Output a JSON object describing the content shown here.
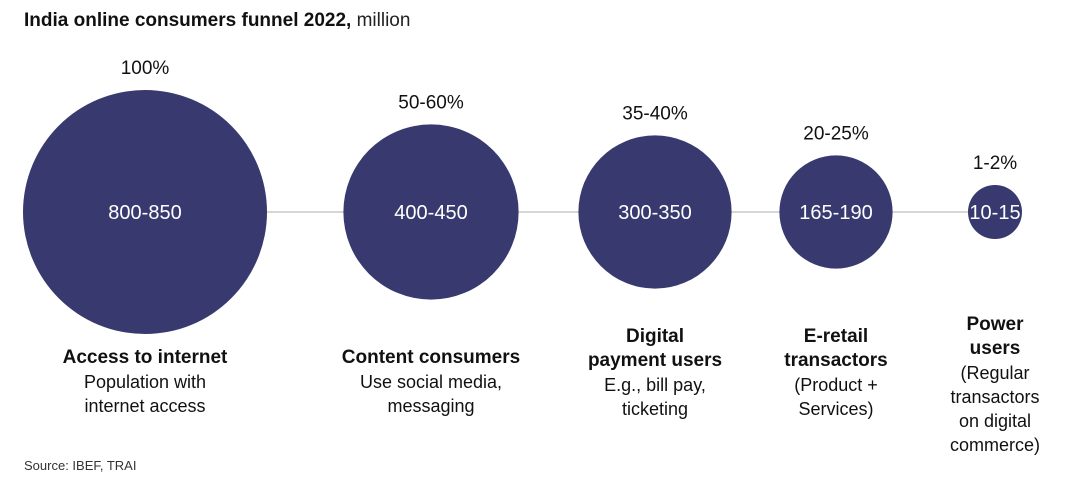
{
  "title": {
    "bold": "India online consumers funnel 2022,",
    "unit": " million"
  },
  "chart_data": {
    "type": "bubble",
    "title": "India online consumers funnel 2022, million",
    "unit": "million",
    "stages": [
      {
        "name": "Access to internet",
        "description": "Population with internet access",
        "value_label": "800-850",
        "value_low": 800,
        "value_high": 850,
        "share_label": "100%"
      },
      {
        "name": "Content consumers",
        "description": "Use social media, messaging",
        "value_label": "400-450",
        "value_low": 400,
        "value_high": 450,
        "share_label": "50-60%"
      },
      {
        "name": "Digital payment users",
        "description": "E.g., bill pay, ticketing",
        "value_label": "300-350",
        "value_low": 300,
        "value_high": 350,
        "share_label": "35-40%"
      },
      {
        "name": "E-retail transactors",
        "description": "(Product + Services)",
        "value_label": "165-190",
        "value_low": 165,
        "value_high": 190,
        "share_label": "20-25%"
      },
      {
        "name": "Power users",
        "description": "(Regular transactors on digital commerce)",
        "value_label": "10-15",
        "value_low": 10,
        "value_high": 15,
        "share_label": "1-2%"
      }
    ],
    "bubble_color": "#383a6f",
    "connector_color": "#c8c8c8"
  },
  "source": "Source: IBEF, TRAI"
}
